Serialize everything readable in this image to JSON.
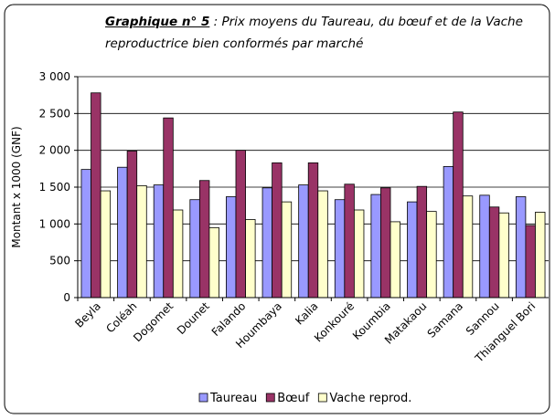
{
  "chart_data": {
    "type": "bar",
    "title_label": "Graphique n° 5",
    "title": ": Prix moyens du Taureau, du bœuf et de la Vache reproductrice bien conformés par marché",
    "ylabel": "Montant  x 1000 (GNF)",
    "categories": [
      "Beyla",
      "Coléah",
      "Dogomet",
      "Dounet",
      "Falando",
      "Houmbaya",
      "Kalia",
      "Konkouré",
      "Koumbia",
      "Matakaou",
      "Samana",
      "Sannou",
      "Thianguel Bori"
    ],
    "series": [
      {
        "name": "Taureau",
        "color": "#9999ff",
        "values": [
          1740,
          1770,
          1530,
          1330,
          1370,
          1490,
          1530,
          1330,
          1400,
          1300,
          1780,
          1390,
          1370
        ]
      },
      {
        "name": "Bœuf",
        "color": "#993366",
        "values": [
          2780,
          1990,
          2440,
          1590,
          2000,
          1830,
          1830,
          1540,
          1490,
          1510,
          2520,
          1230,
          980
        ]
      },
      {
        "name": "Vache reprod.",
        "color": "#ffffcc",
        "values": [
          1450,
          1520,
          1190,
          950,
          1060,
          1300,
          1450,
          1190,
          1030,
          1170,
          1380,
          1150,
          1160
        ]
      }
    ],
    "ylim": [
      0,
      3000
    ],
    "yticks": [
      0,
      500,
      {
        "value": 1000,
        "label": "1 000"
      },
      {
        "value": 1500,
        "label": "1 500"
      },
      {
        "value": 2000,
        "label": "2 000"
      },
      {
        "value": 2500,
        "label": "2 500"
      },
      {
        "value": 3000,
        "label": "3 000"
      }
    ],
    "grid": true,
    "legend": "bottom"
  }
}
